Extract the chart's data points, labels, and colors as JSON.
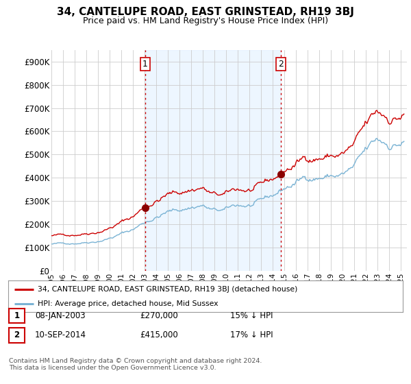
{
  "title": "34, CANTELUPE ROAD, EAST GRINSTEAD, RH19 3BJ",
  "subtitle": "Price paid vs. HM Land Registry's House Price Index (HPI)",
  "title_fontsize": 11,
  "subtitle_fontsize": 9,
  "hpi_color": "#7ab3d4",
  "price_color": "#cc0000",
  "marker_color": "#8b0000",
  "sale1_date_num": 2003.04,
  "sale1_price": 270000,
  "sale1_label": "1",
  "sale2_date_num": 2014.7,
  "sale2_price": 415000,
  "sale2_label": "2",
  "vline_color": "#cc0000",
  "vline_style": ":",
  "fill_color": "#ddeeff",
  "fill_alpha": 0.5,
  "ymin": 0,
  "ymax": 950000,
  "xmin": 1995,
  "xmax": 2025.5,
  "yticks": [
    0,
    100000,
    200000,
    300000,
    400000,
    500000,
    600000,
    700000,
    800000,
    900000
  ],
  "ytick_labels": [
    "£0",
    "£100K",
    "£200K",
    "£300K",
    "£400K",
    "£500K",
    "£600K",
    "£700K",
    "£800K",
    "£900K"
  ],
  "xticks": [
    1995,
    1996,
    1997,
    1998,
    1999,
    2000,
    2001,
    2002,
    2003,
    2004,
    2005,
    2006,
    2007,
    2008,
    2009,
    2010,
    2011,
    2012,
    2013,
    2014,
    2015,
    2016,
    2017,
    2018,
    2019,
    2020,
    2021,
    2022,
    2023,
    2024,
    2025
  ],
  "background_color": "#ffffff",
  "grid_color": "#cccccc",
  "legend_label_red": "34, CANTELUPE ROAD, EAST GRINSTEAD, RH19 3BJ (detached house)",
  "legend_label_blue": "HPI: Average price, detached house, Mid Sussex",
  "table_row1": [
    "1",
    "08-JAN-2003",
    "£270,000",
    "15% ↓ HPI"
  ],
  "table_row2": [
    "2",
    "10-SEP-2014",
    "£415,000",
    "17% ↓ HPI"
  ],
  "footnote": "Contains HM Land Registry data © Crown copyright and database right 2024.\nThis data is licensed under the Open Government Licence v3.0."
}
